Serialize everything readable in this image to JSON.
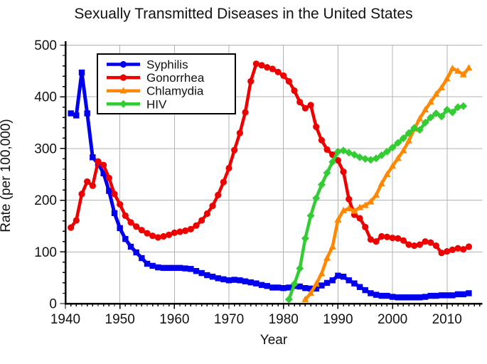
{
  "chart_data": {
    "type": "line",
    "title": "Sexually Transmitted Diseases in the United States",
    "xlabel": "Year",
    "ylabel": "Rate (per 100,000)",
    "xlim": [
      1940,
      2016.5
    ],
    "ylim": [
      0,
      500
    ],
    "x_major_ticks": [
      1940,
      1950,
      1960,
      1970,
      1980,
      1990,
      2000,
      2010
    ],
    "x_minor_step": 1,
    "y_major_ticks": [
      0,
      100,
      200,
      300,
      400,
      500
    ],
    "y_minor_step": 20,
    "grid": true,
    "grid_color": "#b3b3b3",
    "legend_position": "top-left",
    "series": [
      {
        "name": "Syphilis",
        "color": "#0000ee",
        "marker": "square",
        "start_year": 1941,
        "values": [
          368,
          364,
          447,
          368,
          283,
          271,
          252,
          218,
          175,
          146,
          125,
          110,
          99,
          88,
          77,
          73,
          70,
          69,
          69,
          69,
          69,
          68,
          67,
          63,
          59,
          55,
          52,
          49,
          47,
          45,
          46,
          45,
          43,
          41,
          39,
          36,
          34,
          31,
          31,
          30,
          31,
          34,
          33,
          30,
          29,
          29,
          35,
          40,
          45,
          54,
          52,
          45,
          39,
          32,
          26,
          20,
          17,
          15,
          15,
          13,
          12,
          12,
          12,
          12,
          12,
          13,
          15,
          15,
          16,
          16,
          16,
          18,
          18,
          20
        ]
      },
      {
        "name": "Gonorrhea",
        "color": "#ee0000",
        "marker": "circle",
        "start_year": 1941,
        "values": [
          147,
          161,
          212,
          236,
          228,
          275,
          268,
          243,
          212,
          192,
          170,
          157,
          149,
          142,
          136,
          131,
          128,
          130,
          133,
          137,
          139,
          141,
          144,
          151,
          161,
          174,
          189,
          210,
          235,
          262,
          297,
          330,
          370,
          430,
          464,
          461,
          457,
          454,
          448,
          441,
          430,
          412,
          390,
          378,
          384,
          342,
          316,
          298,
          288,
          277,
          255,
          202,
          172,
          165,
          148,
          124,
          120,
          130,
          129,
          127,
          126,
          122,
          114,
          112,
          114,
          120,
          118,
          112,
          98,
          101,
          104,
          107,
          105,
          110
        ]
      },
      {
        "name": "Chlamydia",
        "color": "#ff8800",
        "marker": "triangle",
        "start_year": 1984,
        "values": [
          8,
          20,
          38,
          58,
          88,
          110,
          162,
          180,
          184,
          179,
          186,
          190,
          197,
          210,
          232,
          250,
          266,
          281,
          296,
          315,
          338,
          358,
          375,
          390,
          405,
          418,
          435,
          455,
          450,
          443,
          456
        ]
      },
      {
        "name": "HIV",
        "color": "#33cc33",
        "marker": "diamond",
        "start_year": 1981,
        "values": [
          8,
          38,
          68,
          126,
          170,
          204,
          230,
          253,
          274,
          294,
          296,
          292,
          288,
          283,
          280,
          278,
          281,
          287,
          294,
          302,
          311,
          320,
          330,
          340,
          336,
          350,
          360,
          368,
          362,
          375,
          370,
          380,
          382
        ]
      }
    ]
  }
}
